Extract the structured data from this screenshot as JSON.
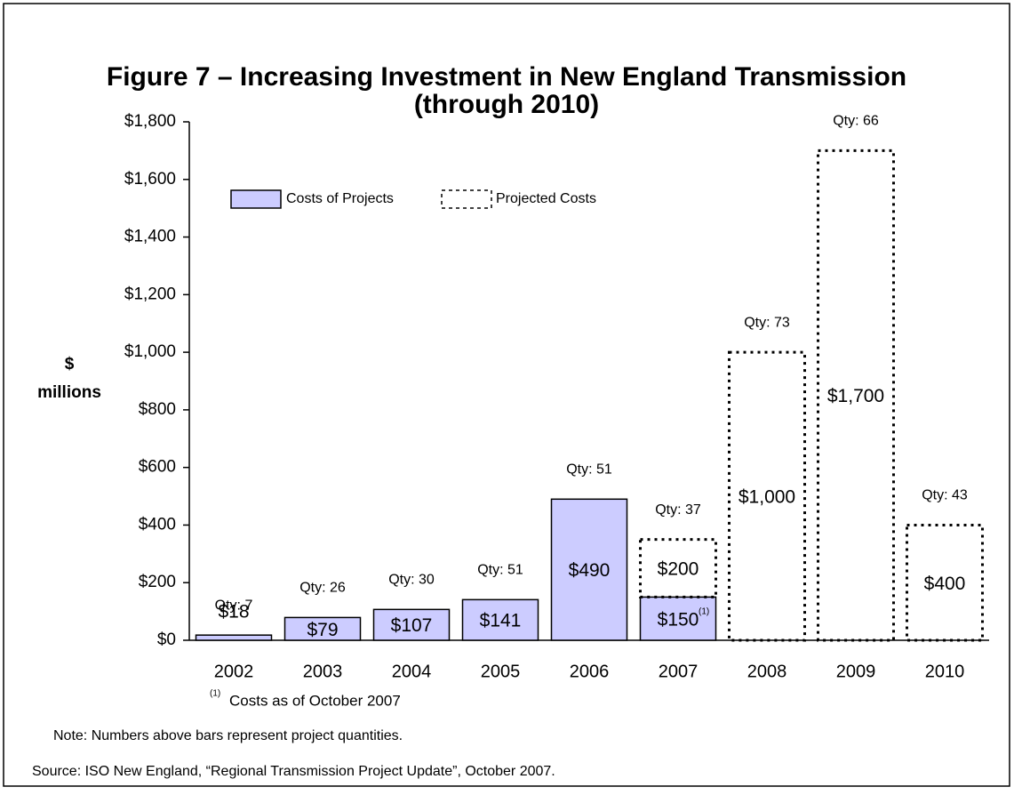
{
  "chart_data": {
    "type": "stacked_bar",
    "title": "Figure 7 – Increasing Investment in New England Transmission",
    "subtitle": "(through 2010)",
    "ylabel_lines": [
      "$",
      "millions"
    ],
    "categories": [
      "2002",
      "2003",
      "2004",
      "2005",
      "2006",
      "2007",
      "2008",
      "2009",
      "2010"
    ],
    "series": [
      {
        "name": "Costs of Projects",
        "color": "#ccccff",
        "style": "solid",
        "values": [
          18,
          79,
          107,
          141,
          490,
          150,
          null,
          null,
          null
        ],
        "value_labels": [
          "$18",
          "$79",
          "$107",
          "$141",
          "$490",
          "$150",
          null,
          null,
          null
        ]
      },
      {
        "name": "Projected Costs",
        "color": "#000000",
        "style": "dotted",
        "values": [
          null,
          null,
          null,
          null,
          null,
          200,
          1000,
          1700,
          400
        ],
        "value_labels": [
          null,
          null,
          null,
          null,
          null,
          "$200",
          "$1,000",
          "$1,700",
          "$400"
        ]
      }
    ],
    "qty_labels": [
      "Qty: 7",
      "Qty: 26",
      "Qty: 30",
      "Qty: 51",
      "Qty: 51",
      "Qty: 37",
      "Qty: 73",
      "Qty: 66",
      "Qty: 43"
    ],
    "ylim": [
      0,
      1800
    ],
    "yticks": [
      {
        "value": 0,
        "label": "$0"
      },
      {
        "value": 200,
        "label": "$200"
      },
      {
        "value": 400,
        "label": "$400"
      },
      {
        "value": 600,
        "label": "$600"
      },
      {
        "value": 800,
        "label": "$800"
      },
      {
        "value": 1000,
        "label": "$1,000"
      },
      {
        "value": 1200,
        "label": "$1,200"
      },
      {
        "value": 1400,
        "label": "$1,400"
      },
      {
        "value": 1600,
        "label": "$1,600"
      },
      {
        "value": 1800,
        "label": "$1,800"
      }
    ],
    "grid": false,
    "footnote_marker": "(1)",
    "footnote": "Costs as of October 2007",
    "note": "Note: Numbers above bars represent project quantities.",
    "source": "Source: ISO New England, “Regional Transmission Project Update”, October 2007."
  }
}
